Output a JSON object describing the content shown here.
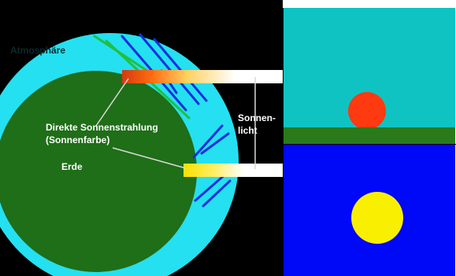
{
  "labels": {
    "atmosphere": "Atmosphäre",
    "direct_line1": "Direkte Sonnenstrahlung",
    "direct_line2": "(Sonnenfarbe)",
    "earth": "Erde",
    "sunlight_line1": "Sonnen-",
    "sunlight_line2": "licht"
  },
  "colors": {
    "background": "#000000",
    "atmosphere": "#25e0f0",
    "earth": "#1f6e18",
    "sky_sunset": "#0fc3c2",
    "ground": "#2a7a1c",
    "sun_sunset": "#ff3a10",
    "sky_noon": "#0008f8",
    "sun_noon": "#f8f000",
    "ray_blue": "#1030e0",
    "ray_green": "#20c040",
    "sunlight_beam": "#ffffff"
  }
}
